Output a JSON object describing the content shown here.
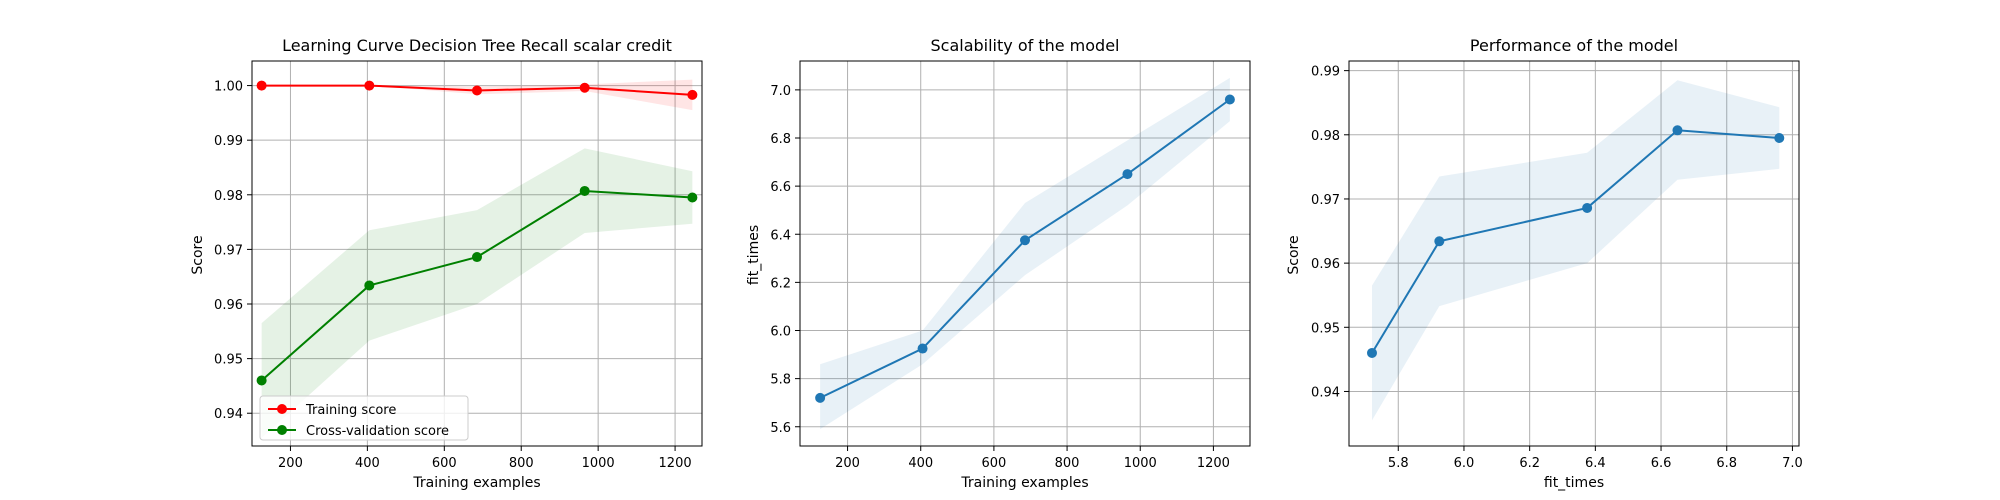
{
  "chart_data": [
    {
      "type": "line",
      "title": "Learning Curve Decision Tree Recall scalar credit",
      "xlabel": "Training examples",
      "ylabel": "Score",
      "xlim": [
        100,
        1270
      ],
      "ylim": [
        0.934,
        1.0045
      ],
      "xticks": [
        200,
        400,
        600,
        800,
        1000,
        1200
      ],
      "xtick_labels": [
        "200",
        "400",
        "600",
        "800",
        "1000",
        "1200"
      ],
      "yticks": [
        0.94,
        0.95,
        0.96,
        0.97,
        0.98,
        0.99,
        1.0
      ],
      "ytick_labels": [
        "0.94",
        "0.95",
        "0.96",
        "0.97",
        "0.98",
        "0.99",
        "1.00"
      ],
      "grid": true,
      "legend": "lower-left",
      "x": [
        125,
        405,
        685,
        965,
        1245
      ],
      "series": [
        {
          "name": "Training score",
          "color": "#ff0000",
          "band_color": "#ff0000",
          "values": [
            1.0,
            1.0,
            0.9991,
            0.9996,
            0.9983
          ],
          "band_low": [
            1.0,
            1.0,
            0.9984,
            0.999,
            0.9955
          ],
          "band_high": [
            1.0,
            1.0,
            0.9998,
            1.0002,
            1.0011
          ]
        },
        {
          "name": "Cross-validation score",
          "color": "#008000",
          "band_color": "#008000",
          "values": [
            0.946,
            0.9634,
            0.9686,
            0.9807,
            0.9795
          ],
          "band_low": [
            0.9355,
            0.9533,
            0.96,
            0.973,
            0.9747
          ],
          "band_high": [
            0.9565,
            0.9735,
            0.9772,
            0.9885,
            0.9843
          ]
        }
      ]
    },
    {
      "type": "line",
      "title": "Scalability of the model",
      "xlabel": "Training examples",
      "ylabel": "fit_times",
      "xlim": [
        70,
        1300
      ],
      "ylim": [
        5.52,
        7.12
      ],
      "xticks": [
        200,
        400,
        600,
        800,
        1000,
        1200
      ],
      "xtick_labels": [
        "200",
        "400",
        "600",
        "800",
        "1000",
        "1200"
      ],
      "yticks": [
        5.6,
        5.8,
        6.0,
        6.2,
        6.4,
        6.6,
        6.8,
        7.0
      ],
      "ytick_labels": [
        "5.6",
        "5.8",
        "6.0",
        "6.2",
        "6.4",
        "6.6",
        "6.8",
        "7.0"
      ],
      "grid": true,
      "x": [
        125,
        405,
        685,
        965,
        1245
      ],
      "series": [
        {
          "color": "#1f77b4",
          "band_color": "#1f77b4",
          "values": [
            5.72,
            5.925,
            6.375,
            6.65,
            6.96
          ],
          "band_low": [
            5.59,
            5.86,
            6.23,
            6.52,
            6.87
          ],
          "band_high": [
            5.86,
            6.0,
            6.53,
            6.79,
            7.05
          ]
        }
      ]
    },
    {
      "type": "line",
      "title": "Performance of the model",
      "xlabel": "fit_times",
      "ylabel": "Score",
      "xlim": [
        5.65,
        7.02
      ],
      "ylim": [
        0.9315,
        0.9915
      ],
      "xticks": [
        5.8,
        6.0,
        6.2,
        6.4,
        6.6,
        6.8,
        7.0
      ],
      "xtick_labels": [
        "5.8",
        "6.0",
        "6.2",
        "6.4",
        "6.6",
        "6.8",
        "7.0"
      ],
      "yticks": [
        0.94,
        0.95,
        0.96,
        0.97,
        0.98,
        0.99
      ],
      "ytick_labels": [
        "0.94",
        "0.95",
        "0.96",
        "0.97",
        "0.98",
        "0.99"
      ],
      "grid": true,
      "x": [
        5.72,
        5.925,
        6.375,
        6.65,
        6.96
      ],
      "series": [
        {
          "color": "#1f77b4",
          "band_color": "#1f77b4",
          "values": [
            0.946,
            0.9634,
            0.9686,
            0.9807,
            0.9795
          ],
          "band_low": [
            0.9355,
            0.9533,
            0.96,
            0.973,
            0.9747
          ],
          "band_high": [
            0.9565,
            0.9735,
            0.9772,
            0.9885,
            0.9843
          ]
        }
      ]
    }
  ]
}
